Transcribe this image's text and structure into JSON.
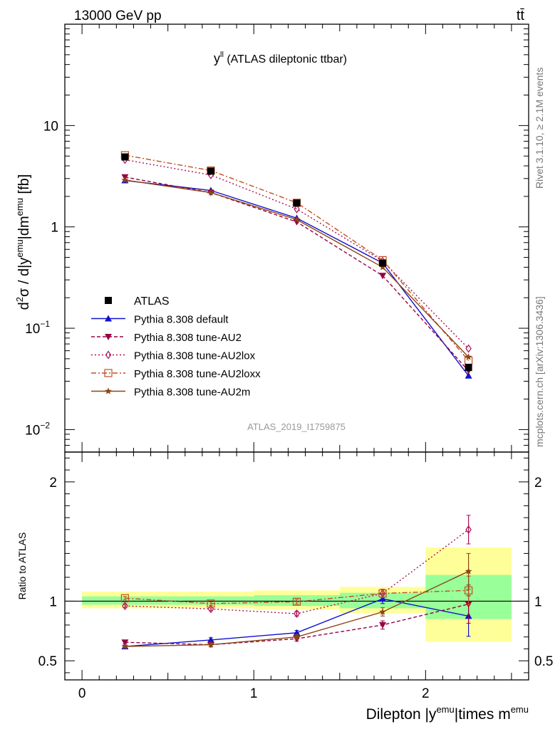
{
  "header": {
    "energy": "13000 GeV pp",
    "process": "tt̄",
    "rivet": "Rivet 3.1.10, ≥ 2.1M events",
    "mcplots": "mcplots.cern.ch [arXiv:1306.3436]",
    "analysis": "ATLAS_2019_I1759875"
  },
  "chart_data": {
    "type": "line",
    "title": "y^ll (ATLAS dileptonic ttbar)",
    "title_main": "y",
    "title_sup": "ll",
    "title_rest": " (ATLAS dileptonic ttbar)",
    "xlabel": "Dilepton |y^emu|times m^emu",
    "xlabel_parts": [
      "Dilepton |y",
      "emu",
      "|times m",
      "emu"
    ],
    "ylabel": "d²σ / d|y^emu|dm^emu [fb]",
    "ylabel_parts": [
      "d",
      "2",
      "σ / d|y",
      "emu",
      "|dm",
      "emu",
      " [fb]"
    ],
    "ratio_ylabel": "Ratio to ATLAS",
    "xlim": [
      -0.1,
      2.6
    ],
    "ylim": [
      0.006,
      100
    ],
    "ratio_ylim": [
      0.34,
      2.25
    ],
    "yscale": "log",
    "x": [
      0.25,
      0.75,
      1.25,
      1.75,
      2.25
    ],
    "bin_edges": [
      0,
      0.5,
      1,
      1.5,
      2,
      2.5
    ],
    "x_ticks": [
      {
        "v": 0,
        "label": "0"
      },
      {
        "v": 1,
        "label": "1"
      },
      {
        "v": 2,
        "label": "2"
      }
    ],
    "y_ticks": [
      {
        "v": 10,
        "label": "10",
        "exp": ""
      },
      {
        "v": 1,
        "label": "1",
        "exp": ""
      },
      {
        "v": 0.1,
        "label": "10",
        "exp": "−1"
      },
      {
        "v": 0.01,
        "label": "10",
        "exp": "−2"
      }
    ],
    "ratio_ticks": [
      {
        "v": 0.5,
        "label": "0.5"
      },
      {
        "v": 1,
        "label": "1"
      },
      {
        "v": 2,
        "label": "2"
      }
    ],
    "data": {
      "name": "ATLAS",
      "values": [
        4.9,
        3.55,
        1.72,
        0.44,
        0.041
      ],
      "band_inner": [
        [
          0.97,
          1.04
        ],
        [
          0.97,
          1.04
        ],
        [
          0.96,
          1.05
        ],
        [
          0.94,
          1.07
        ],
        [
          0.85,
          1.22
        ]
      ],
      "band_outer": [
        [
          0.94,
          1.08
        ],
        [
          0.94,
          1.08
        ],
        [
          0.93,
          1.09
        ],
        [
          0.9,
          1.12
        ],
        [
          0.66,
          1.45
        ]
      ]
    },
    "series": [
      {
        "name": "Pythia 8.308 default",
        "color": "#1111cc",
        "dash": "",
        "marker": "triangle-up",
        "values": [
          2.87,
          2.29,
          1.22,
          0.44,
          0.034
        ],
        "ratio": [
          0.62,
          0.675,
          0.735,
          1.02,
          0.875
        ],
        "ratio_err": [
          0.012,
          0.018,
          0.02,
          0.04,
          0.17
        ]
      },
      {
        "name": "Pythia 8.308 tune-AU2",
        "color": "#990044",
        "dash": "5,3",
        "marker": "triangle-down",
        "values": [
          3.1,
          2.18,
          1.12,
          0.33,
          0.038
        ],
        "ratio": [
          0.655,
          0.635,
          0.685,
          0.8,
          0.975
        ],
        "ratio_err": [
          0.012,
          0.015,
          0.02,
          0.035,
          0.16
        ]
      },
      {
        "name": "Pythia 8.308 tune-AU2lox",
        "color": "#aa1155",
        "dash": "2,3",
        "marker": "diamond-open",
        "values": [
          4.6,
          3.25,
          1.5,
          0.46,
          0.063
        ],
        "ratio": [
          0.96,
          0.935,
          0.895,
          1.065,
          1.6
        ],
        "ratio_err": [
          0.015,
          0.015,
          0.02,
          0.035,
          0.12
        ]
      },
      {
        "name": "Pythia 8.308 tune-AU2loxx",
        "color": "#c05020",
        "dash": "7,3,2,3",
        "marker": "square-open",
        "values": [
          5.1,
          3.6,
          1.73,
          0.47,
          0.048
        ],
        "ratio": [
          1.025,
          0.98,
          0.995,
          1.065,
          1.09
        ],
        "ratio_err": [
          0.015,
          0.015,
          0.02,
          0.035,
          0.12
        ]
      },
      {
        "name": "Pythia 8.308 tune-AU2m",
        "color": "#8b4513",
        "dash": "",
        "marker": "star",
        "values": [
          2.9,
          2.18,
          1.18,
          0.4,
          0.052
        ],
        "ratio": [
          0.62,
          0.635,
          0.7,
          0.91,
          1.25
        ],
        "ratio_err": [
          0.01,
          0.015,
          0.02,
          0.035,
          0.15
        ]
      }
    ]
  }
}
